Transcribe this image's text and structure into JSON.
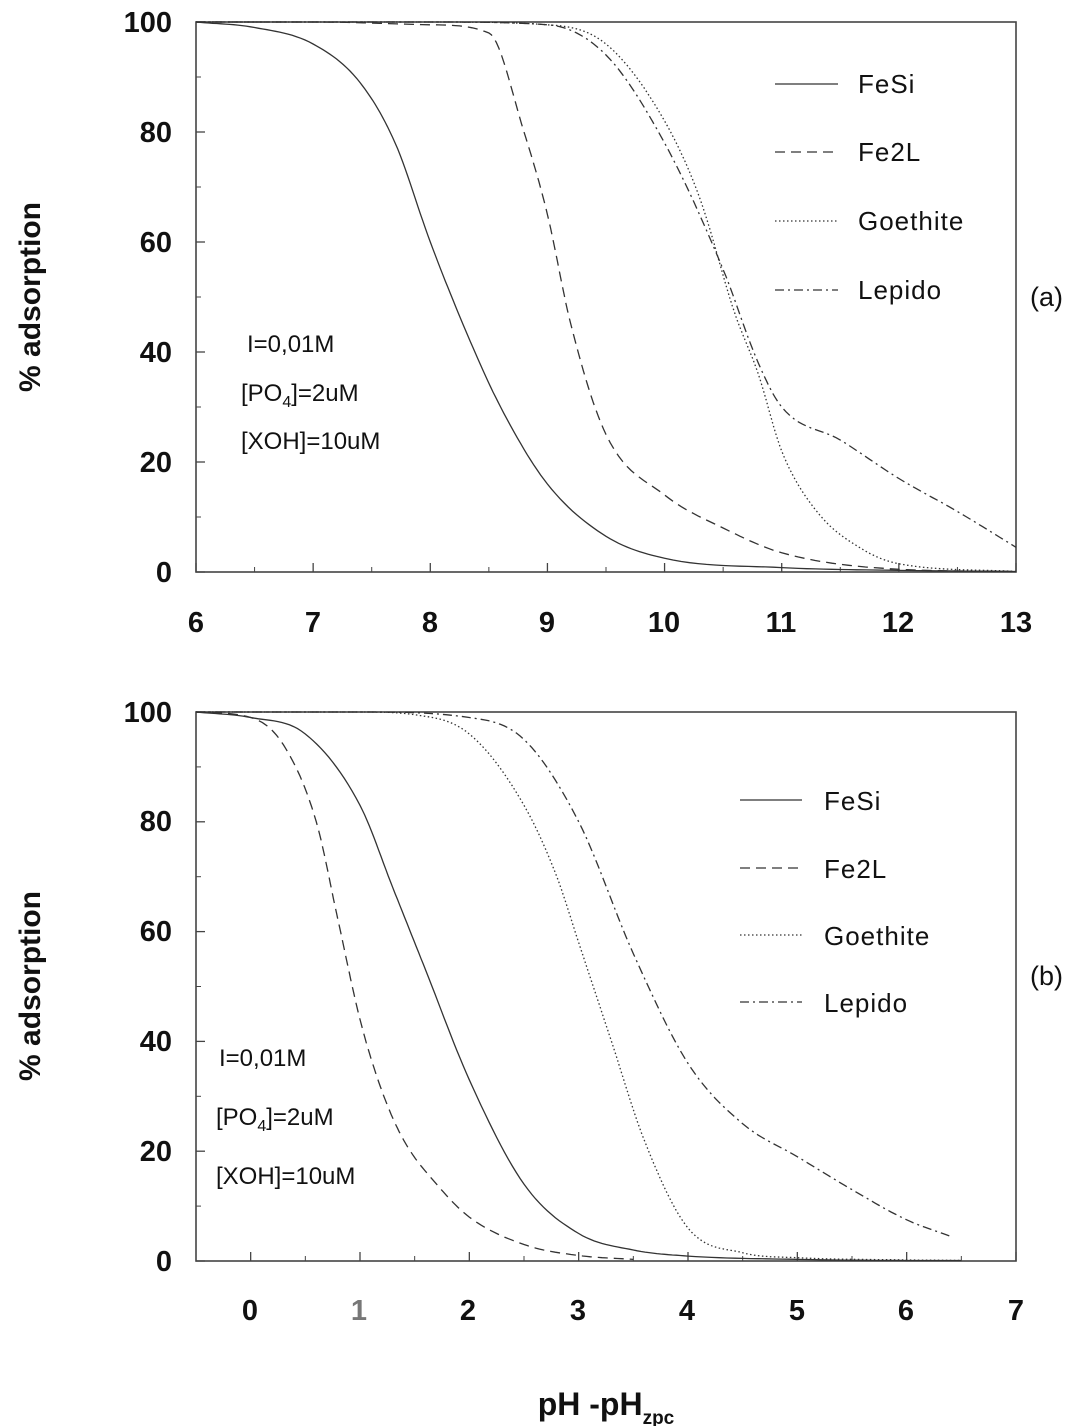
{
  "chart_data": [
    {
      "id": "a",
      "type": "line",
      "panel_label": "(a)",
      "ylabel": "% adsorption",
      "xlabel": "",
      "xlim": [
        6,
        13
      ],
      "ylim": [
        0,
        100
      ],
      "xticks": [
        "6",
        "7",
        "8",
        "9",
        "10",
        "11",
        "12",
        "13"
      ],
      "yticks": [
        "0",
        "20",
        "40",
        "60",
        "80",
        "100"
      ],
      "grid": false,
      "legend_position": "top-right",
      "annotations": [
        "I=0,01M",
        "[PO4]=2uM",
        "[XOH]=10uM"
      ],
      "series": [
        {
          "name": "FeSi",
          "dash": "solid",
          "color": "#333333",
          "x": [
            6,
            6.5,
            7,
            7.4,
            7.7,
            8,
            8.3,
            8.6,
            9,
            9.5,
            10,
            11,
            12,
            13
          ],
          "y": [
            100,
            99,
            96,
            89,
            78,
            60,
            44,
            30,
            16,
            6.5,
            2.5,
            0.8,
            0.3,
            0.1
          ]
        },
        {
          "name": "Fe2L",
          "dash": "dashed",
          "color": "#333333",
          "x": [
            6,
            7,
            8,
            8.5,
            8.8,
            9,
            9.2,
            9.5,
            10,
            10.5,
            11,
            12,
            13
          ],
          "y": [
            100,
            100,
            99.5,
            98,
            80,
            65,
            45,
            25,
            14,
            8,
            3.5,
            0.5,
            0.1
          ]
        },
        {
          "name": "Goethite",
          "dash": "dotted",
          "color": "#333333",
          "x": [
            6,
            8,
            9,
            9.5,
            10,
            10.3,
            10.6,
            10.8,
            11,
            11.3,
            11.7,
            12,
            13
          ],
          "y": [
            100,
            100,
            99.5,
            96,
            82,
            68,
            47,
            36,
            22,
            11,
            4,
            1.5,
            0.1
          ]
        },
        {
          "name": "Lepido",
          "dash": "dashdot",
          "color": "#333333",
          "x": [
            6,
            8,
            9,
            9.5,
            10,
            10.5,
            10.8,
            11,
            11.5,
            12,
            12.5,
            13
          ],
          "y": [
            100,
            100,
            99.5,
            94,
            78,
            55,
            38,
            30,
            24,
            17,
            11,
            4.5
          ]
        }
      ]
    },
    {
      "id": "b",
      "type": "line",
      "panel_label": "(b)",
      "ylabel": "% adsorption",
      "xlabel": "pH -pH",
      "xlabel_sub": "zpc",
      "xlim": [
        -0.5,
        7
      ],
      "ylim": [
        0,
        100
      ],
      "xticks": [
        "0",
        "1",
        "2",
        "3",
        "4",
        "5",
        "6",
        "7"
      ],
      "yticks": [
        "0",
        "20",
        "40",
        "60",
        "80",
        "100"
      ],
      "grid": false,
      "legend_position": "top-right",
      "annotations": [
        "I=0,01M",
        "[PO4]=2uM",
        "[XOH]=10uM"
      ],
      "series": [
        {
          "name": "FeSi",
          "dash": "solid",
          "color": "#333333",
          "x": [
            -0.5,
            0,
            0.5,
            1,
            1.3,
            1.6,
            2,
            2.5,
            3,
            3.5,
            4,
            5,
            6,
            6.5
          ],
          "y": [
            100,
            99,
            96,
            83,
            68,
            53,
            33,
            14,
            5,
            2,
            0.9,
            0.3,
            0.1,
            0.1
          ]
        },
        {
          "name": "Fe2L",
          "dash": "dashed",
          "color": "#333333",
          "x": [
            -0.5,
            0,
            0.3,
            0.6,
            0.8,
            1,
            1.2,
            1.4,
            1.7,
            2,
            2.5,
            3,
            3.5
          ],
          "y": [
            100,
            99,
            94,
            80,
            62,
            44,
            31,
            22,
            14,
            8,
            3,
            1,
            0.3
          ]
        },
        {
          "name": "Goethite",
          "dash": "dotted",
          "color": "#333333",
          "x": [
            -0.5,
            1,
            1.5,
            2,
            2.5,
            2.8,
            3,
            3.3,
            3.6,
            4,
            4.5,
            5,
            6,
            6.5
          ],
          "y": [
            100,
            100,
            99.5,
            96,
            83,
            70,
            58,
            40,
            22,
            6,
            1.5,
            0.6,
            0.2,
            0.1
          ]
        },
        {
          "name": "Lepido",
          "dash": "dashdot",
          "color": "#333333",
          "x": [
            -0.5,
            1,
            2,
            2.5,
            3,
            3.5,
            4,
            4.5,
            5,
            5.5,
            6,
            6.4
          ],
          "y": [
            100,
            100,
            99,
            95,
            80,
            56,
            36,
            25,
            19,
            13,
            7.5,
            4.5
          ]
        }
      ]
    }
  ]
}
